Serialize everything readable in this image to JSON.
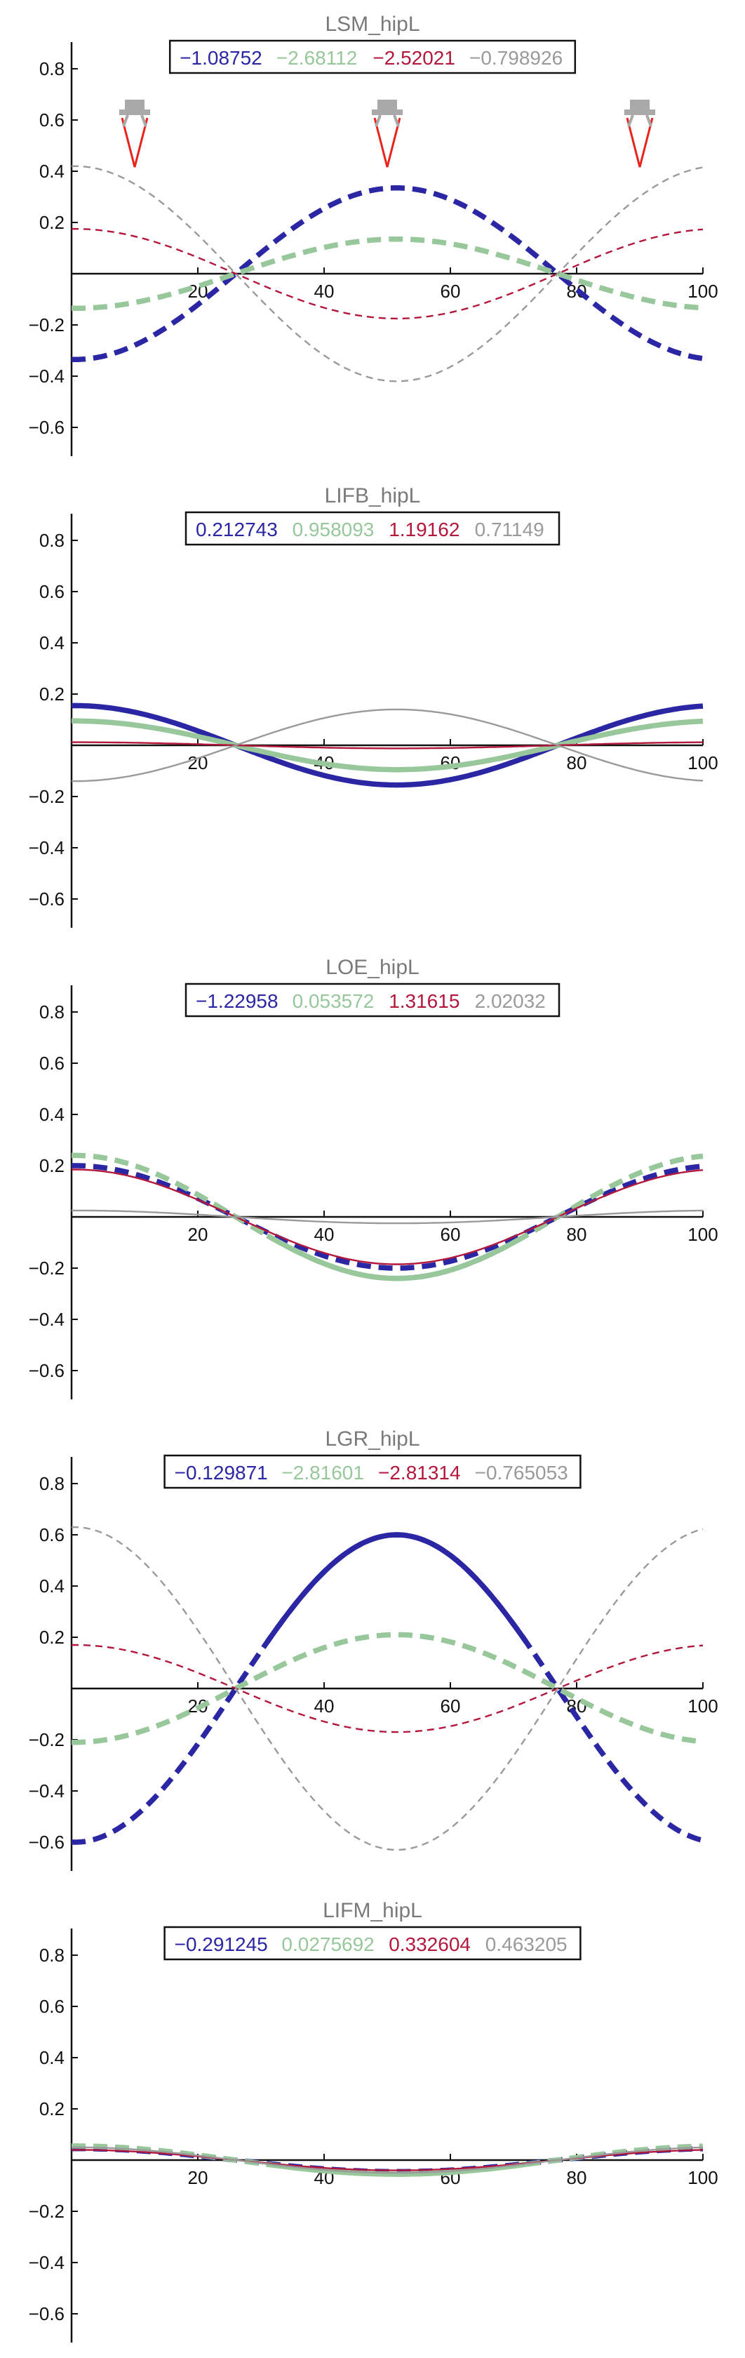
{
  "colors": {
    "blue": "#2b26a3",
    "green": "#97c79a",
    "red": "#b3173c",
    "gray": "#9a9a9a",
    "marker": "#e8231b",
    "marker_head": "#a9a9a9"
  },
  "chart_data": [
    {
      "type": "line",
      "title": "LSM_hipL",
      "legend": [
        "−1.08752",
        "−2.68112",
        "−2.52021",
        "−0.798926"
      ],
      "xlim": [
        0,
        100
      ],
      "ylim": [
        -0.7,
        0.85
      ],
      "xticks": [
        "20",
        "40",
        "60",
        "80",
        "100"
      ],
      "yticks": [
        "0.8",
        "0.6",
        "0.4",
        "0.2",
        "−0.2",
        "−0.4",
        "−0.6"
      ],
      "markers_x": [
        10,
        50,
        90
      ],
      "series": [
        {
          "color": "blue",
          "amplitude": 0.335,
          "style": "thick-dashed"
        },
        {
          "color": "green",
          "amplitude": 0.135,
          "style": "thick-dashed"
        },
        {
          "color": "red",
          "amplitude": -0.175,
          "style": "thin-dashed"
        },
        {
          "color": "gray",
          "amplitude": -0.42,
          "style": "thin-dashed"
        }
      ]
    },
    {
      "type": "line",
      "title": "LIFB_hipL",
      "legend": [
        "0.212743",
        "0.958093",
        "1.19162",
        "0.71149"
      ],
      "xlim": [
        0,
        100
      ],
      "ylim": [
        -0.7,
        0.85
      ],
      "xticks": [
        "20",
        "40",
        "60",
        "80",
        "100"
      ],
      "yticks": [
        "0.8",
        "0.6",
        "0.4",
        "0.2",
        "−0.2",
        "−0.4",
        "−0.6"
      ],
      "markers_x": [],
      "series": [
        {
          "color": "blue",
          "amplitude": -0.155,
          "style": "thick-solid"
        },
        {
          "color": "green",
          "amplitude": -0.095,
          "style": "thick-solid"
        },
        {
          "color": "red",
          "amplitude": -0.012,
          "style": "thin-solid"
        },
        {
          "color": "gray",
          "amplitude": 0.14,
          "style": "thin-solid"
        }
      ]
    },
    {
      "type": "line",
      "title": "LOE_hipL",
      "legend": [
        "−1.22958",
        "0.053572",
        "1.31615",
        "2.02032"
      ],
      "xlim": [
        0,
        100
      ],
      "ylim": [
        -0.7,
        0.85
      ],
      "xticks": [
        "20",
        "40",
        "60",
        "80",
        "100"
      ],
      "yticks": [
        "0.8",
        "0.6",
        "0.4",
        "0.2",
        "−0.2",
        "−0.4",
        "−0.6"
      ],
      "markers_x": [],
      "series": [
        {
          "color": "blue",
          "amplitude": -0.2,
          "style": "thick-dashed"
        },
        {
          "color": "green",
          "amplitude": -0.24,
          "style": "thick-solid-dashed"
        },
        {
          "color": "red",
          "amplitude": -0.185,
          "style": "thin-solid"
        },
        {
          "color": "gray",
          "amplitude": -0.025,
          "style": "thin-solid"
        }
      ]
    },
    {
      "type": "line",
      "title": "LGR_hipL",
      "legend": [
        "−0.129871",
        "−2.81601",
        "−2.81314",
        "−0.765053"
      ],
      "xlim": [
        0,
        100
      ],
      "ylim": [
        -0.7,
        0.85
      ],
      "xticks": [
        "20",
        "40",
        "60",
        "80",
        "100"
      ],
      "yticks": [
        "0.8",
        "0.6",
        "0.4",
        "0.2",
        "−0.2",
        "−0.4",
        "−0.6"
      ],
      "markers_x": [],
      "series": [
        {
          "color": "blue",
          "amplitude": 0.6,
          "style": "thick-solid-dashed"
        },
        {
          "color": "green",
          "amplitude": 0.21,
          "style": "thick-dashed"
        },
        {
          "color": "red",
          "amplitude": -0.17,
          "style": "thin-dashed"
        },
        {
          "color": "gray",
          "amplitude": -0.63,
          "style": "thin-dashed"
        }
      ]
    },
    {
      "type": "line",
      "title": "LIFM_hipL",
      "legend": [
        "−0.291245",
        "0.0275692",
        "0.332604",
        "0.463205"
      ],
      "xlim": [
        0,
        100
      ],
      "ylim": [
        -0.7,
        0.85
      ],
      "xticks": [
        "20",
        "40",
        "60",
        "80",
        "100"
      ],
      "yticks": [
        "0.8",
        "0.6",
        "0.4",
        "0.2",
        "−0.2",
        "−0.4",
        "−0.6"
      ],
      "markers_x": [],
      "series": [
        {
          "color": "blue",
          "amplitude": -0.045,
          "style": "thick-dashed"
        },
        {
          "color": "green",
          "amplitude": -0.055,
          "style": "thick-solid-dashed"
        },
        {
          "color": "red",
          "amplitude": -0.04,
          "style": "thin-solid"
        },
        {
          "color": "gray",
          "amplitude": -0.05,
          "style": "thin-solid"
        }
      ]
    }
  ]
}
